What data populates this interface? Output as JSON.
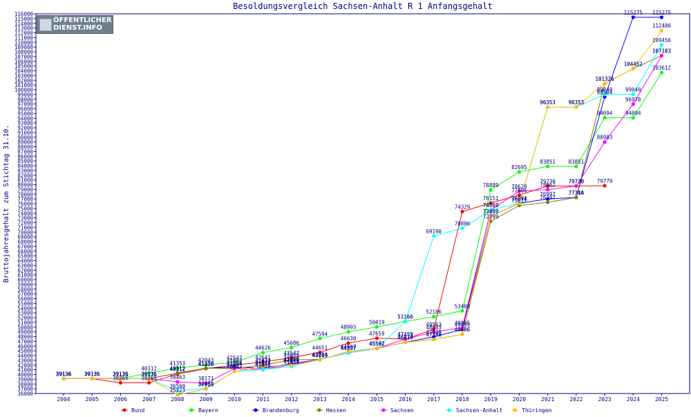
{
  "chart_data": {
    "type": "line",
    "title": "Besoldungsvergleich Sachsen-Anhalt R 1 Anfangsgehalt",
    "ylabel": "Bruttojahresgehalt zum Stichtag 31.10.",
    "xlabel": "",
    "ylim": [
      36000,
      116000
    ],
    "ystep": 1000,
    "grid": false,
    "legend_position": "bottom",
    "x": [
      "2004",
      "2005",
      "2006",
      "2007",
      "2008",
      "2009",
      "2010",
      "2011",
      "2012",
      "2013",
      "2014",
      "2015",
      "2016",
      "2017",
      "2018",
      "2019",
      "2020",
      "2021",
      "2022",
      "2023",
      "2024",
      "2025"
    ],
    "series": [
      {
        "name": "Bund",
        "color": "#ff0000",
        "values": [
          39136,
          39136,
          38265,
          38265,
          40112,
          41256,
          41982,
          42641,
          43547,
          44651,
          46630,
          47659,
          47459,
          49563,
          74329,
          76151,
          77806,
          79730,
          79730,
          79779,
          null,
          null
        ]
      },
      {
        "name": "Bayern",
        "color": "#00ff00",
        "values": [
          39136,
          39136,
          39136,
          40312,
          41353,
          42043,
          42547,
          44626,
          45686,
          47594,
          48993,
          50019,
          51166,
          52186,
          53409,
          78889,
          82695,
          83851,
          83851,
          94094,
          94094,
          103612
        ]
      },
      {
        "name": "Brandenburg",
        "color": "#0000ff",
        "values": [
          39136,
          39136,
          39136,
          39136,
          40312,
          41338,
          41554,
          41338,
          42258,
          43214,
          44597,
          45502,
          46810,
          47938,
          49495,
          73409,
          76074,
          76997,
          77306,
          98504,
          115275,
          115275
        ]
      },
      {
        "name": "Hessen",
        "color": "#808000",
        "values": [
          39136,
          39136,
          39136,
          39136,
          40312,
          41338,
          41264,
          41977,
          43089,
          43214,
          44597,
          45502,
          46810,
          47388,
          48486,
          72299,
          75612,
          76297,
          77314,
          101326,
          104452,
          107183
        ]
      },
      {
        "name": "Sachsen",
        "color": "#ff00ff",
        "values": [
          39136,
          39136,
          39136,
          39136,
          38463,
          38171,
          41264,
          41051,
          42089,
          43214,
          44597,
          45502,
          47455,
          48963,
          49895,
          74669,
          78629,
          78962,
          79730,
          88983,
          96978,
          107183
        ]
      },
      {
        "name": "Sachsen-Anhalt",
        "color": "#00ffff",
        "values": [
          39136,
          39136,
          39136,
          39136,
          36560,
          37085,
          40647,
          41051,
          41689,
          43214,
          44597,
          45502,
          51166,
          69190,
          70806,
          74669,
          76074,
          96353,
          96353,
          99040,
          99040,
          109456
        ]
      },
      {
        "name": "Thüringen",
        "color": "#ffbb00",
        "values": [
          39136,
          39136,
          39136,
          39136,
          35723,
          36950,
          40647,
          41677,
          41976,
          43089,
          44907,
          45502,
          46810,
          47388,
          48486,
          73409,
          76091,
          96353,
          96353,
          101326,
          104452,
          112480
        ]
      }
    ]
  },
  "logo": {
    "line1": "ÖFFENTLICHER",
    "line2": "DIENST.INFO"
  }
}
